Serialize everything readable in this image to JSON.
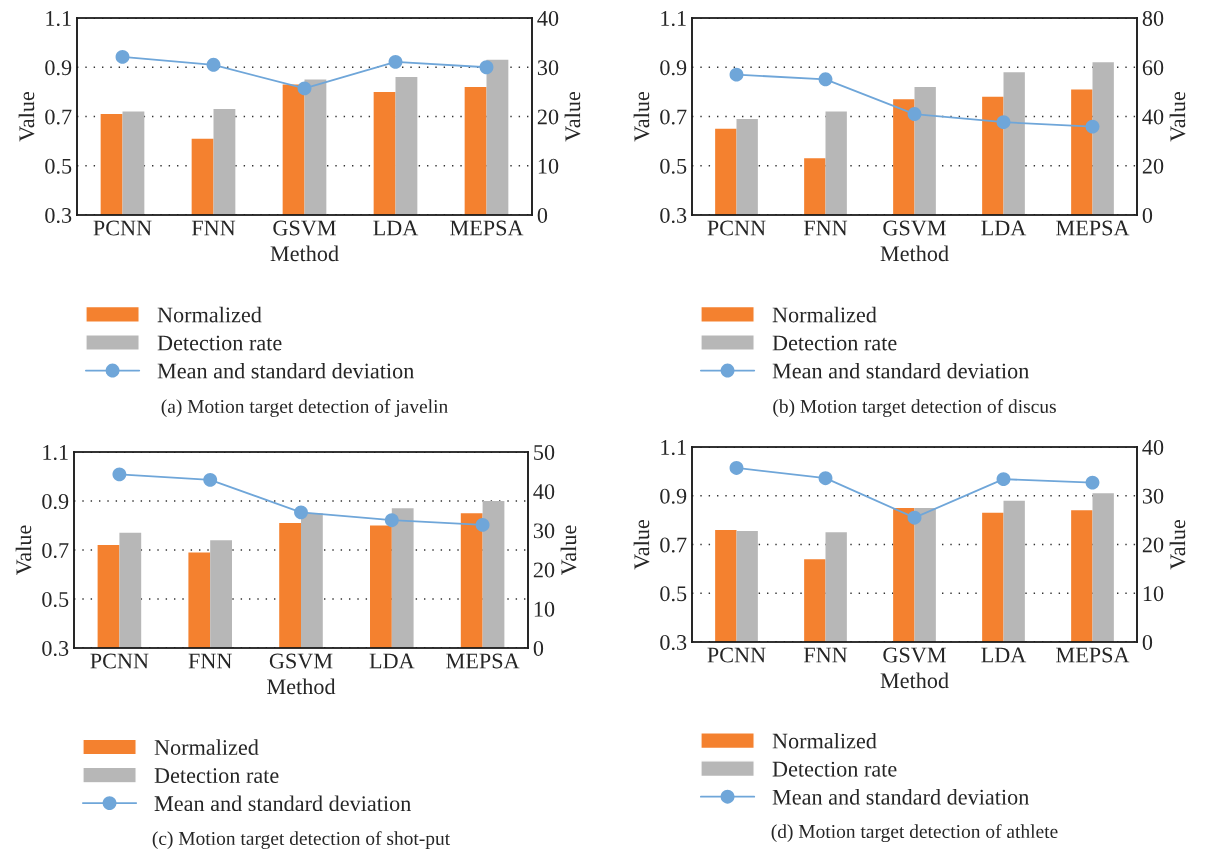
{
  "chart_data": [
    {
      "type": "bar",
      "title": "(a) Motion target detection of javelin",
      "xlabel": "Method",
      "ylabel": "Value",
      "y2label": "Value",
      "categories": [
        "PCNN",
        "FNN",
        "GSVM",
        "LDA",
        "MEPSA"
      ],
      "series": [
        {
          "name": "Normalized",
          "color": "#f4812f",
          "values": [
            0.71,
            0.61,
            0.83,
            0.8,
            0.82
          ]
        },
        {
          "name": "Detection rate",
          "color": "#b7b7b7",
          "values": [
            0.72,
            0.73,
            0.85,
            0.86,
            0.93
          ]
        },
        {
          "name": "Mean and standard deviation",
          "type": "line",
          "axis": "y2",
          "color": "#6fa6d9",
          "values": [
            32.1,
            30.5,
            25.7,
            31.1,
            30.0
          ]
        }
      ],
      "ylim": [
        0.3,
        1.1
      ],
      "yticks": [
        0.3,
        0.5,
        0.7,
        0.9,
        1.1
      ],
      "y2lim": [
        0,
        40
      ],
      "y2ticks": [
        0,
        10,
        20,
        30,
        40
      ],
      "grid": "y",
      "legend": "bottom",
      "marker": "circle"
    },
    {
      "type": "bar",
      "title": "(b) Motion target detection of discus",
      "xlabel": "Method",
      "ylabel": "Value",
      "y2label": "Value",
      "categories": [
        "PCNN",
        "FNN",
        "GSVM",
        "LDA",
        "MEPSA"
      ],
      "series": [
        {
          "name": "Normalized",
          "color": "#f4812f",
          "values": [
            0.65,
            0.53,
            0.77,
            0.78,
            0.81
          ]
        },
        {
          "name": "Detection rate",
          "color": "#b7b7b7",
          "values": [
            0.69,
            0.72,
            0.82,
            0.88,
            0.92
          ]
        },
        {
          "name": "Mean and standard deviation",
          "type": "line",
          "axis": "y2",
          "color": "#6fa6d9",
          "values": [
            57.0,
            55.1,
            41.0,
            37.7,
            35.9
          ]
        }
      ],
      "ylim": [
        0.3,
        1.1
      ],
      "yticks": [
        0.3,
        0.5,
        0.7,
        0.9,
        1.1
      ],
      "y2lim": [
        0,
        80
      ],
      "y2ticks": [
        0,
        20,
        40,
        60,
        80
      ],
      "grid": "y",
      "legend": "bottom",
      "marker": "circle"
    },
    {
      "type": "bar",
      "title": "(c) Motion target detection of shot-put",
      "xlabel": "Method",
      "ylabel": "Value",
      "y2label": "Value",
      "categories": [
        "PCNN",
        "FNN",
        "GSVM",
        "LDA",
        "MEPSA"
      ],
      "series": [
        {
          "name": "Normalized",
          "color": "#f4812f",
          "values": [
            0.72,
            0.69,
            0.81,
            0.8,
            0.85
          ]
        },
        {
          "name": "Detection rate",
          "color": "#b7b7b7",
          "values": [
            0.77,
            0.74,
            0.85,
            0.87,
            0.9
          ]
        },
        {
          "name": "Mean and standard deviation",
          "type": "line",
          "axis": "y2",
          "color": "#6fa6d9",
          "values": [
            44.3,
            42.9,
            34.6,
            32.6,
            31.4
          ]
        }
      ],
      "ylim": [
        0.3,
        1.1
      ],
      "yticks": [
        0.3,
        0.5,
        0.7,
        0.9,
        1.1
      ],
      "y2lim": [
        0,
        50
      ],
      "y2ticks": [
        0,
        10,
        20,
        30,
        40,
        50
      ],
      "grid": "y",
      "legend": "bottom",
      "marker": "circle"
    },
    {
      "type": "bar",
      "title": "(d) Motion target detection of athlete",
      "xlabel": "Method",
      "ylabel": "Value",
      "y2label": "Value",
      "categories": [
        "PCNN",
        "FNN",
        "GSVM",
        "LDA",
        "MEPSA"
      ],
      "series": [
        {
          "name": "Normalized",
          "color": "#f4812f",
          "values": [
            0.76,
            0.64,
            0.85,
            0.83,
            0.84
          ]
        },
        {
          "name": "Detection rate",
          "color": "#b7b7b7",
          "values": [
            0.755,
            0.75,
            0.85,
            0.88,
            0.91
          ]
        },
        {
          "name": "Mean and standard deviation",
          "type": "line",
          "axis": "y2",
          "color": "#6fa6d9",
          "values": [
            35.7,
            33.6,
            25.5,
            33.4,
            32.7
          ]
        }
      ],
      "ylim": [
        0.3,
        1.1
      ],
      "yticks": [
        0.3,
        0.5,
        0.7,
        0.9,
        1.1
      ],
      "y2lim": [
        0,
        40
      ],
      "y2ticks": [
        0,
        10,
        20,
        30,
        40
      ],
      "grid": "y",
      "legend": "bottom",
      "marker": "circle"
    }
  ]
}
